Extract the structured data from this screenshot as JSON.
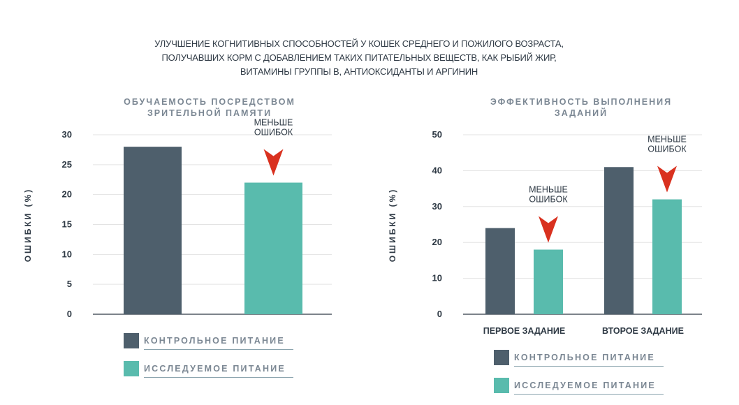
{
  "title": {
    "lines": [
      "УЛУЧШЕНИЕ КОГНИТИВНЫХ СПОСОБНОСТЕЙ У КОШЕК СРЕДНЕГО И ПОЖИЛОГО ВОЗРАСТА,",
      "ПОЛУЧАВШИХ КОРМ С ДОБАВЛЕНИЕМ ТАКИХ ПИТАТЕЛЬНЫХ ВЕЩЕСТВ, КАК РЫБИЙ ЖИР,",
      "ВИТАМИНЫ ГРУППЫ В, АНТИОКСИДАНТЫ И АРГИНИН"
    ]
  },
  "colors": {
    "control": "#4e5f6c",
    "test": "#59bbad",
    "arrow": "#d9311f",
    "grid": "#e3e3e3",
    "axis": "#2e3944"
  },
  "legend": {
    "control_label": "КОНТРОЛЬНОЕ ПИТАНИЕ",
    "test_label": "ИССЛЕДУЕМОЕ ПИТАНИЕ"
  },
  "chart_data": [
    {
      "type": "bar",
      "title_lines": [
        "ОБУЧАЕМОСТЬ ПОСРЕДСТВОМ",
        "ЗРИТЕЛЬНОЙ ПАМЯТИ"
      ],
      "ylabel": "ОШИБКИ (%)",
      "ylim": [
        0,
        30
      ],
      "yticks": [
        0,
        5,
        10,
        15,
        20,
        25,
        30
      ],
      "grid": true,
      "legend_position": "bottom",
      "categories": [
        ""
      ],
      "series": [
        {
          "name": "КОНТРОЛЬНОЕ ПИТАНИЕ",
          "values": [
            28
          ]
        },
        {
          "name": "ИССЛЕДУЕМОЕ ПИТАНИЕ",
          "values": [
            22
          ]
        }
      ],
      "annotations": [
        {
          "lines": [
            "МЕНЬШЕ",
            "ОШИБОК"
          ],
          "category_index": 0,
          "series_index": 1
        }
      ]
    },
    {
      "type": "bar",
      "title_lines": [
        "ЭФФЕКТИВНОСТЬ ВЫПОЛНЕНИЯ",
        "ЗАДАНИЙ"
      ],
      "ylabel": "ОШИБКИ (%)",
      "ylim": [
        0,
        50
      ],
      "yticks": [
        0,
        10,
        20,
        30,
        40,
        50
      ],
      "grid": true,
      "legend_position": "bottom",
      "categories": [
        "ПЕРВОЕ ЗАДАНИЕ",
        "ВТОРОЕ ЗАДАНИЕ"
      ],
      "series": [
        {
          "name": "КОНТРОЛЬНОЕ ПИТАНИЕ",
          "values": [
            24,
            41
          ]
        },
        {
          "name": "ИССЛЕДУЕМОЕ ПИТАНИЕ",
          "values": [
            18,
            32
          ]
        }
      ],
      "annotations": [
        {
          "lines": [
            "МЕНЬШЕ",
            "ОШИБОК"
          ],
          "category_index": 0,
          "series_index": 1
        },
        {
          "lines": [
            "МЕНЬШЕ",
            "ОШИБОК"
          ],
          "category_index": 1,
          "series_index": 1
        }
      ]
    }
  ]
}
